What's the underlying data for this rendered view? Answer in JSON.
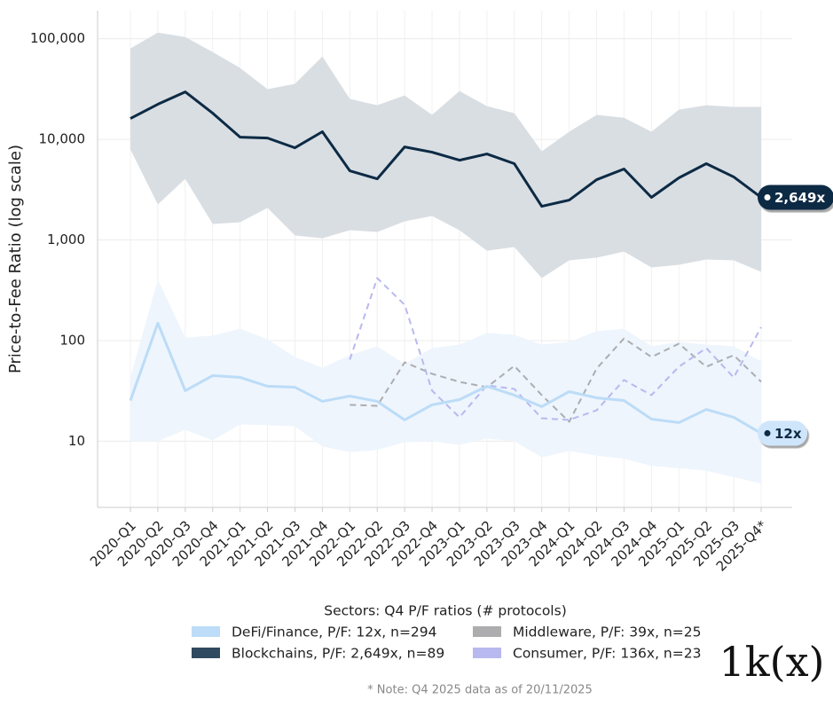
{
  "chart_data": {
    "type": "line",
    "y_label": "Price-to-Fee Ratio (log scale)",
    "log_scale": "y",
    "grid": true,
    "categories": [
      "2020-Q1",
      "2020-Q2",
      "2020-Q3",
      "2020-Q4",
      "2021-Q1",
      "2021-Q2",
      "2021-Q3",
      "2021-Q4",
      "2022-Q1",
      "2022-Q2",
      "2022-Q3",
      "2022-Q4",
      "2023-Q1",
      "2023-Q2",
      "2023-Q3",
      "2023-Q4",
      "2024-Q1",
      "2024-Q2",
      "2024-Q3",
      "2024-Q4",
      "2025-Q1",
      "2025-Q2",
      "2025-Q3",
      "2025-Q4*"
    ],
    "ylim": [
      2.2,
      190000
    ],
    "yticks": [
      10,
      100,
      {
        "value": 1000,
        "label": "1,000"
      },
      {
        "value": 10000,
        "label": "10,000"
      },
      {
        "value": 100000,
        "label": "100,000"
      }
    ],
    "legend_title": "Sectors: Q4 P/F ratios (# protocols)",
    "series": [
      {
        "name": "DeFi/Finance, P/F: 12x, n=294",
        "color": "#bcdcf7",
        "band_color": "#eef5fd",
        "dashed": false,
        "values": [
          25.4,
          149,
          31.8,
          44.9,
          43.1,
          35.2,
          34.4,
          24.9,
          28.1,
          24.9,
          16.3,
          23.0,
          25.9,
          35.2,
          28.7,
          22.1,
          31.1,
          27.0,
          25.4,
          16.6,
          15.3,
          20.7,
          17.3,
          12
        ],
        "band_high": [
          43,
          402,
          107,
          112,
          131,
          103,
          68.7,
          53.8,
          71.6,
          87.7,
          58.5,
          84.2,
          91.2,
          119,
          114,
          91.2,
          97,
          124,
          131,
          87.7,
          97,
          91.2,
          87.7,
          62
        ],
        "band_low": [
          10,
          10,
          13.0,
          10.2,
          14.7,
          14.4,
          14.1,
          8.85,
          7.8,
          8.2,
          9.8,
          10,
          9.2,
          10.6,
          10,
          6.9,
          8.0,
          7.2,
          6.7,
          5.7,
          5.4,
          5.1,
          4.4,
          3.8
        ],
        "value_labels": [
          null,
          null,
          null,
          null,
          null,
          null,
          null,
          null,
          null,
          null,
          null,
          null,
          null,
          null,
          null,
          null,
          null,
          null,
          null,
          null,
          null,
          null,
          null,
          "12x"
        ]
      },
      {
        "name": "Blockchains, P/F: 2,649x, n=89",
        "color": "#0c2a44",
        "band_color": "#d9dee3",
        "dashed": false,
        "values": [
          16100,
          22300,
          29600,
          18200,
          10500,
          10300,
          8240,
          11900,
          4870,
          4050,
          8410,
          7450,
          6200,
          7160,
          5730,
          2160,
          2490,
          3970,
          5070,
          2650,
          4140,
          5730,
          4230,
          2649
        ],
        "band_high": [
          80000,
          115000,
          104000,
          73800,
          51200,
          31500,
          35600,
          66700,
          25200,
          21800,
          27300,
          17500,
          30200,
          21400,
          18200,
          7600,
          11900,
          17500,
          16400,
          11900,
          19700,
          21800,
          21000,
          21000
        ],
        "band_low": [
          7920,
          2250,
          4050,
          1440,
          1500,
          2080,
          1110,
          1040,
          1250,
          1200,
          1530,
          1730,
          1250,
          783,
          851,
          418,
          627,
          667,
          767,
          533,
          567,
          640,
          627,
          482
        ],
        "value_labels": [
          null,
          null,
          null,
          null,
          null,
          null,
          null,
          null,
          null,
          null,
          null,
          null,
          null,
          null,
          null,
          null,
          null,
          null,
          null,
          null,
          null,
          null,
          null,
          "2,649x"
        ]
      },
      {
        "name": "Middleware, P/F: 39x, n=25",
        "color": "#adadb0",
        "dashed": true,
        "values": [
          null,
          null,
          null,
          null,
          null,
          null,
          null,
          null,
          23.0,
          22.5,
          60.8,
          46.8,
          38.9,
          34.4,
          56.1,
          28.7,
          15.6,
          52.7,
          105,
          68.7,
          93.1,
          55,
          71.6,
          39
        ]
      },
      {
        "name": "Consumer, P/F: 136x, n=23",
        "color": "#b8b9ef",
        "dashed": true,
        "values": [
          null,
          null,
          null,
          null,
          null,
          null,
          null,
          null,
          64.7,
          418,
          227,
          31.8,
          17.3,
          35.9,
          33.1,
          16.9,
          16.3,
          20.3,
          40.6,
          28.7,
          55,
          84.2,
          43,
          136
        ]
      }
    ],
    "note": "* Note: Q4 2025 data as of 20/11/2025",
    "logo": "1k(x)"
  }
}
